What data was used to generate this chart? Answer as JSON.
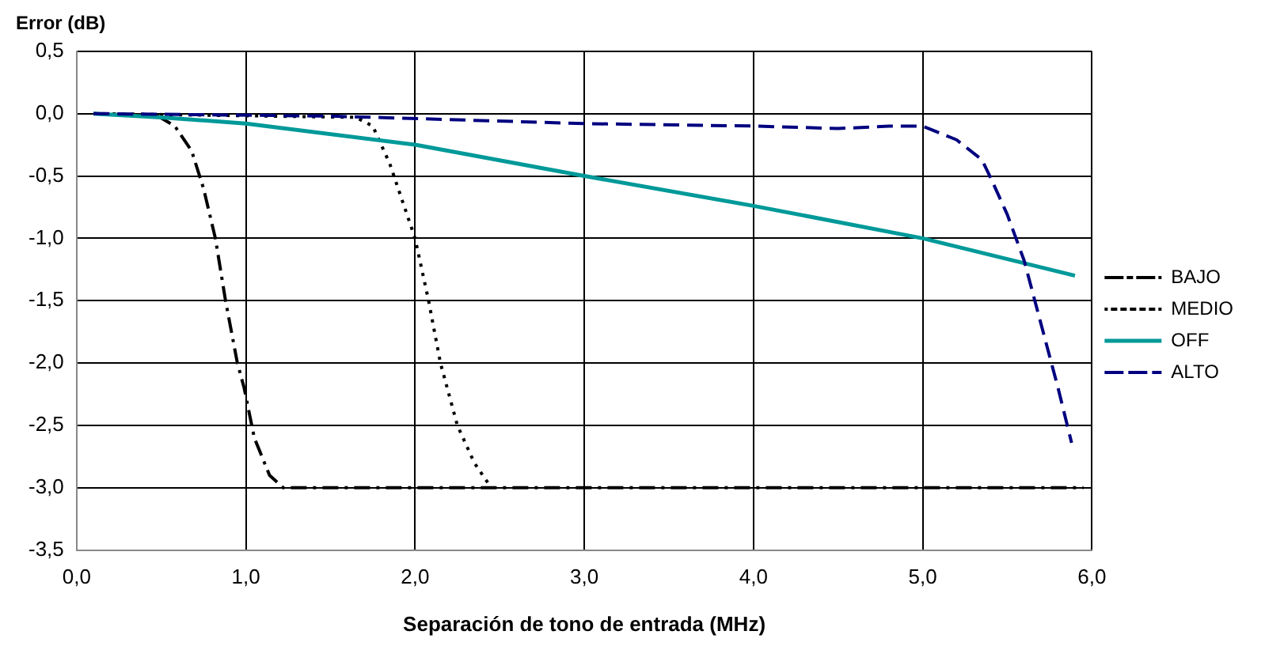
{
  "chart_data": {
    "type": "line",
    "ylabel": "Error (dB)",
    "xlabel": "Separación de tono de entrada (MHz)",
    "xlim": [
      0,
      6
    ],
    "xticks": [
      {
        "value": 0,
        "label": "0,0"
      },
      {
        "value": 1,
        "label": "1,0"
      },
      {
        "value": 2,
        "label": "2,0"
      },
      {
        "value": 3,
        "label": "3,0"
      },
      {
        "value": 4,
        "label": "4,0"
      },
      {
        "value": 5,
        "label": "5,0"
      },
      {
        "value": 6,
        "label": "6,0"
      }
    ],
    "ylim": [
      -3.5,
      0.5
    ],
    "yticks": [
      {
        "value": 0.5,
        "label": "0,5"
      },
      {
        "value": 0,
        "label": "0,0"
      },
      {
        "value": -0.5,
        "label": "-0,5"
      },
      {
        "value": -1,
        "label": "-1,0"
      },
      {
        "value": -1.5,
        "label": "-1,5"
      },
      {
        "value": -2,
        "label": "-2,0"
      },
      {
        "value": -2.5,
        "label": "-2,5"
      },
      {
        "value": -3,
        "label": "-3,0"
      },
      {
        "value": -3.5,
        "label": "-3,5"
      }
    ],
    "grid": true,
    "legend": "right",
    "marker": "none",
    "series": [
      {
        "name": "BAJO",
        "color": "#000000",
        "line_style": "dashdot",
        "x": [
          0.1,
          0.48,
          0.58,
          0.68,
          0.75,
          0.82,
          0.88,
          0.95,
          0.99,
          1.05,
          1.14,
          1.22,
          5.95
        ],
        "values": [
          0,
          -0.02,
          -0.1,
          -0.3,
          -0.6,
          -1.0,
          -1.5,
          -2.0,
          -2.2,
          -2.6,
          -2.9,
          -3.0,
          -3.0
        ]
      },
      {
        "name": "MEDIO",
        "color": "#000000",
        "line_style": "dotted",
        "x": [
          0.1,
          1.65,
          1.75,
          1.85,
          1.95,
          2.0,
          2.08,
          2.15,
          2.25,
          2.35,
          2.45
        ],
        "values": [
          0,
          -0.03,
          -0.1,
          -0.4,
          -0.8,
          -1.0,
          -1.5,
          -2.0,
          -2.5,
          -2.8,
          -3.0
        ]
      },
      {
        "name": "OFF",
        "color": "#009999",
        "line_style": "solid",
        "x": [
          0.1,
          0.5,
          1.0,
          2.0,
          3.0,
          4.0,
          5.0,
          5.9
        ],
        "values": [
          0,
          -0.03,
          -0.08,
          -0.25,
          -0.5,
          -0.74,
          -1.0,
          -1.3
        ]
      },
      {
        "name": "ALTO",
        "color": "#000080",
        "line_style": "dashed",
        "x": [
          0.1,
          1.5,
          3.0,
          4.0,
          4.5,
          4.8,
          5.0,
          5.2,
          5.35,
          5.4,
          5.5,
          5.6,
          5.7,
          5.8,
          5.88
        ],
        "values": [
          0,
          -0.02,
          -0.08,
          -0.1,
          -0.12,
          -0.1,
          -0.1,
          -0.21,
          -0.37,
          -0.51,
          -0.81,
          -1.18,
          -1.69,
          -2.2,
          -2.64
        ]
      }
    ]
  }
}
